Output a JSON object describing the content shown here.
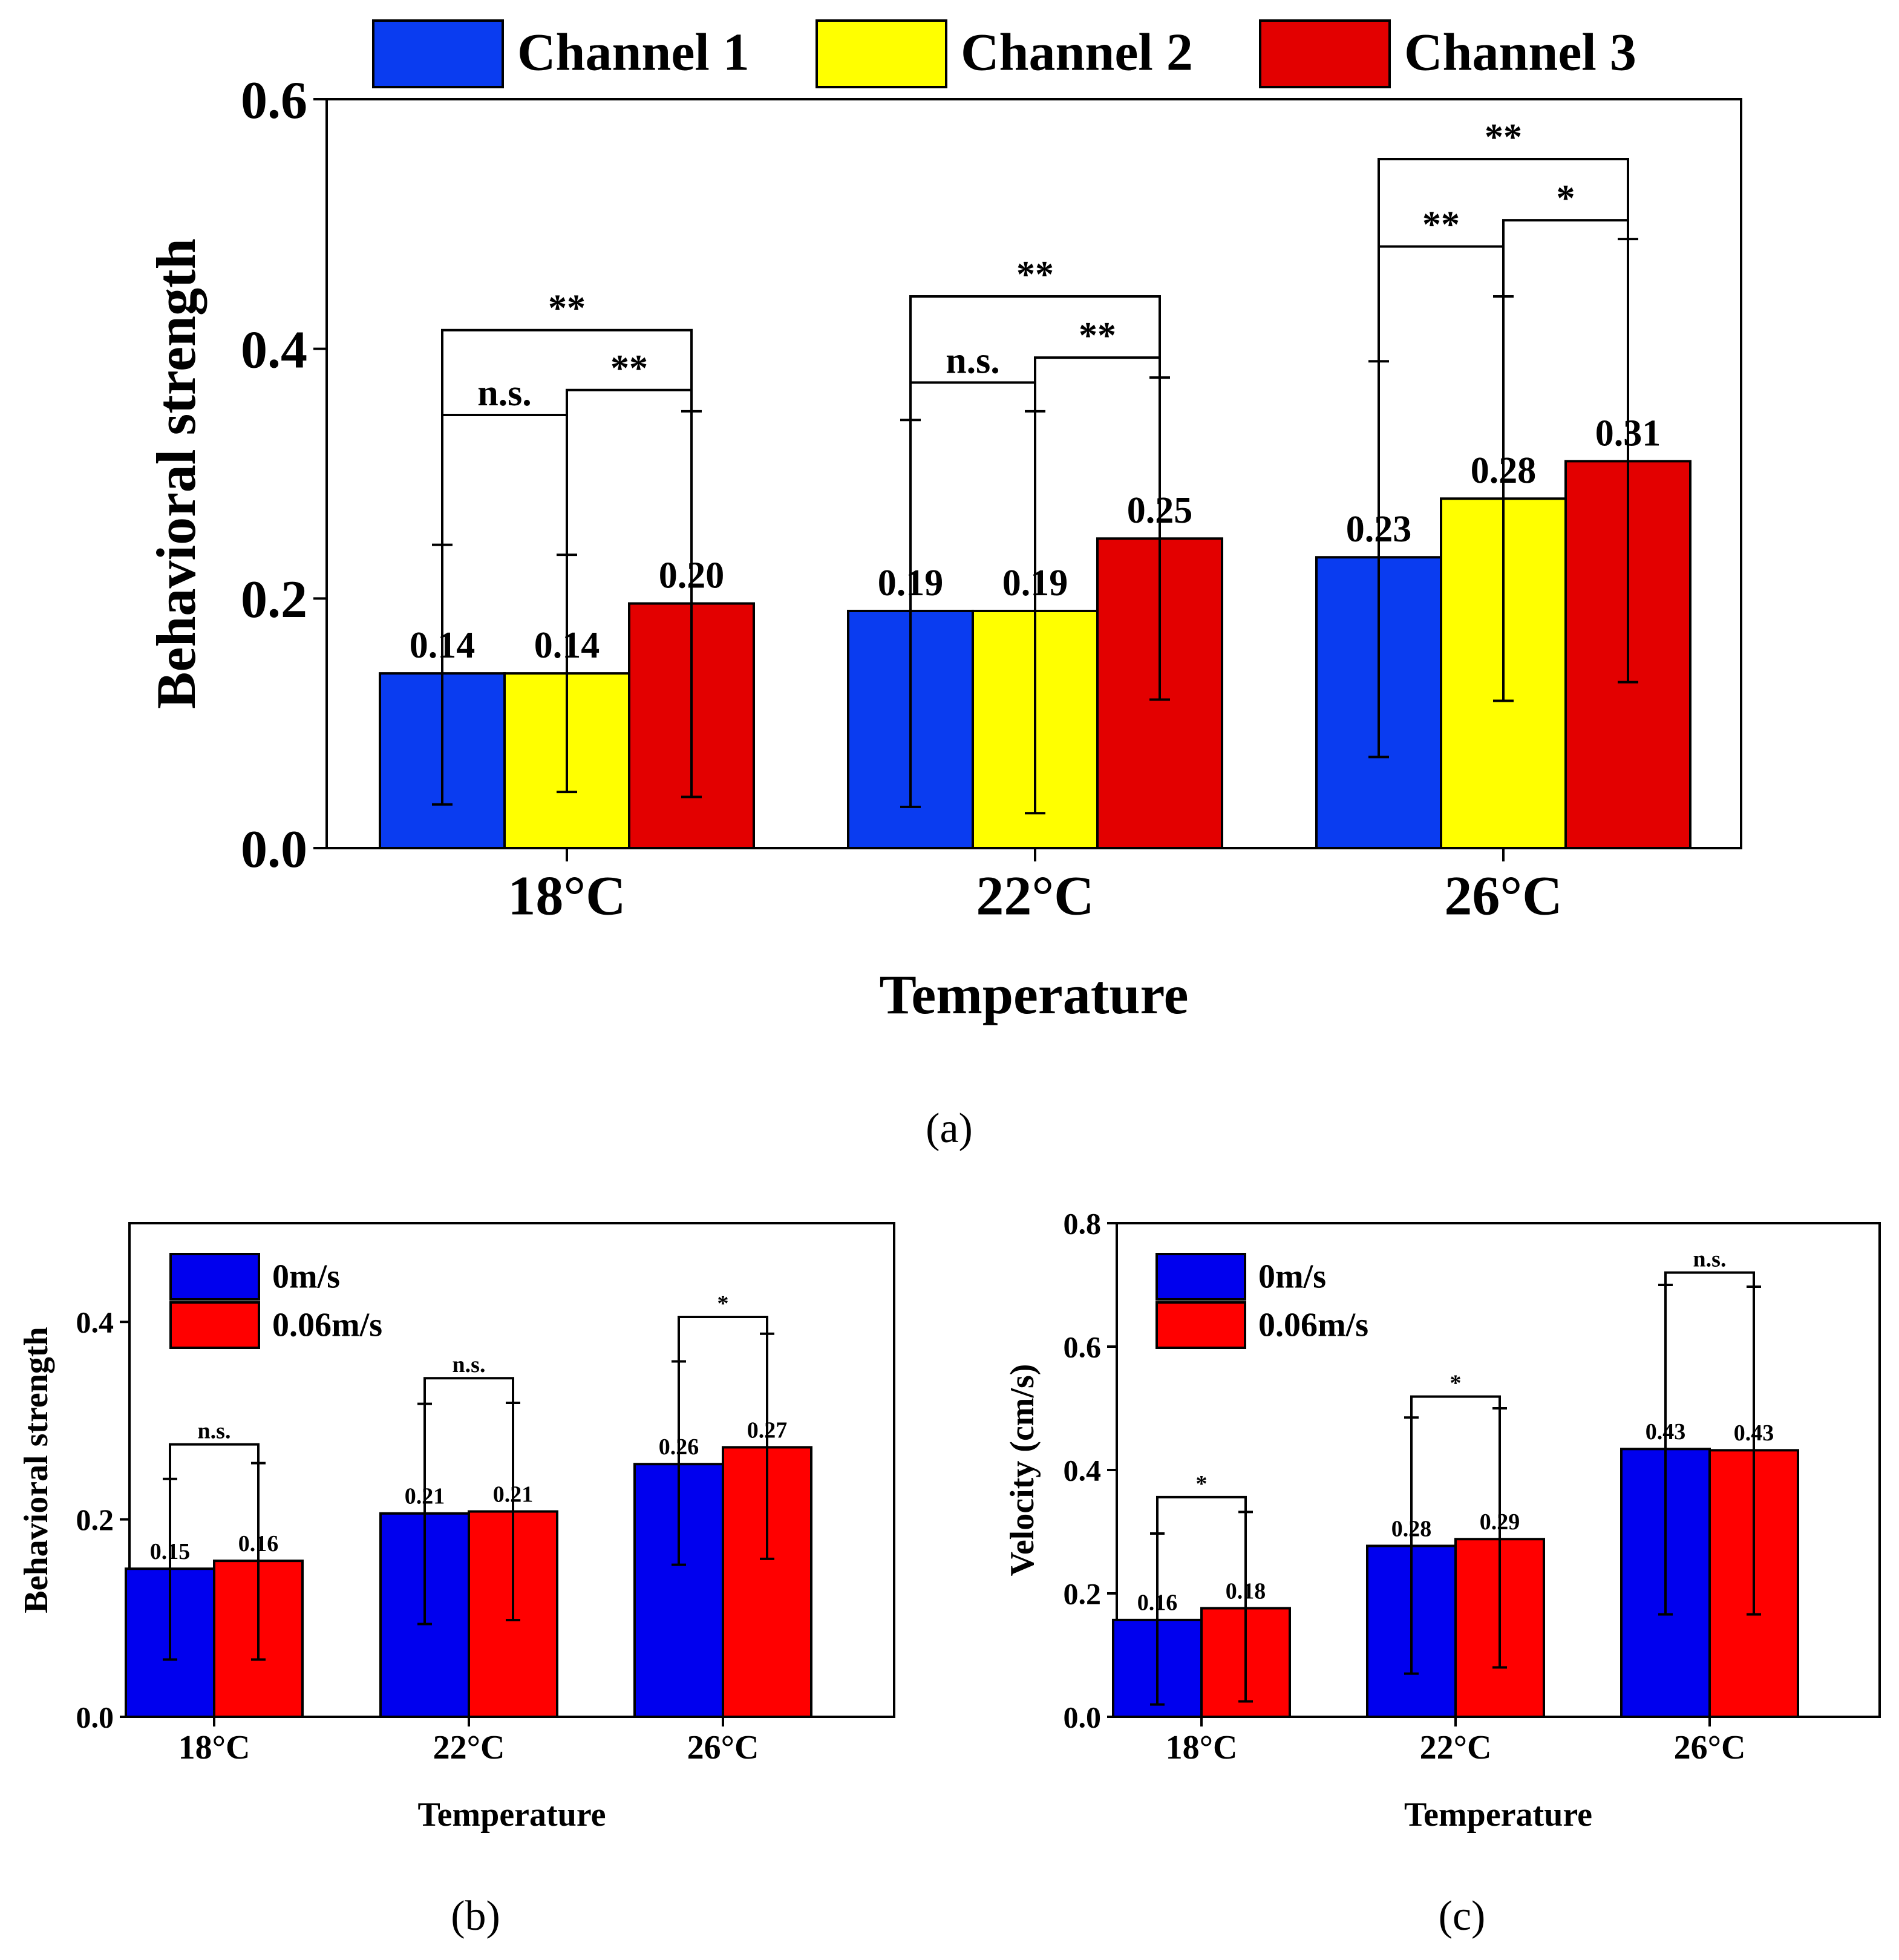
{
  "chart_data": [
    {
      "type": "bar",
      "panel": "a",
      "caption": "(a)",
      "xlabel": "Temperature",
      "ylabel": "Behavioral strength",
      "categories": [
        "18°C",
        "22°C",
        "26°C"
      ],
      "ylim": [
        0,
        0.6
      ],
      "yticks": [
        "0.0",
        "0.2",
        "0.4",
        "0.6"
      ],
      "legend_position": "top",
      "series": [
        {
          "name": "Channel 1",
          "color": "#0a3cf0",
          "values": [
            0.14,
            0.19,
            0.233
          ],
          "labels": [
            "0.14",
            "0.19",
            "0.23"
          ],
          "err_low": [
            0.035,
            0.033,
            0.073
          ],
          "err_high": [
            0.243,
            0.343,
            0.39
          ]
        },
        {
          "name": "Channel 2",
          "color": "#ffff00",
          "values": [
            0.14,
            0.19,
            0.28
          ],
          "labels": [
            "0.14",
            "0.19",
            "0.28"
          ],
          "err_low": [
            0.045,
            0.028,
            0.118
          ],
          "err_high": [
            0.235,
            0.35,
            0.442
          ]
        },
        {
          "name": "Channel 3",
          "color": "#e30000",
          "values": [
            0.196,
            0.248,
            0.31
          ],
          "labels": [
            "0.20",
            "0.25",
            "0.31"
          ],
          "err_low": [
            0.041,
            0.119,
            0.133
          ],
          "err_high": [
            0.35,
            0.377,
            0.488
          ]
        }
      ],
      "significance": [
        {
          "group": 0,
          "from": 0,
          "to": 1,
          "label": "n.s.",
          "level": 0.347
        },
        {
          "group": 0,
          "from": 1,
          "to": 2,
          "label": "**",
          "level": 0.367
        },
        {
          "group": 0,
          "from": 0,
          "to": 2,
          "label": "**",
          "level": 0.415
        },
        {
          "group": 1,
          "from": 0,
          "to": 1,
          "label": "n.s.",
          "level": 0.373
        },
        {
          "group": 1,
          "from": 1,
          "to": 2,
          "label": "**",
          "level": 0.393
        },
        {
          "group": 1,
          "from": 0,
          "to": 2,
          "label": "**",
          "level": 0.442
        },
        {
          "group": 2,
          "from": 0,
          "to": 1,
          "label": "**",
          "level": 0.482
        },
        {
          "group": 2,
          "from": 1,
          "to": 2,
          "label": "*",
          "level": 0.503
        },
        {
          "group": 2,
          "from": 0,
          "to": 2,
          "label": "**",
          "level": 0.552
        }
      ]
    },
    {
      "type": "bar",
      "panel": "b",
      "caption": "(b)",
      "xlabel": "Temperature",
      "ylabel": "Behavioral strength",
      "categories": [
        "18°C",
        "22°C",
        "26°C"
      ],
      "ylim": [
        0,
        0.5
      ],
      "yticks": [
        "0.0",
        "0.2",
        "0.4"
      ],
      "legend_position": "top-left",
      "series": [
        {
          "name": "0m/s",
          "color": "#0000ee",
          "values": [
            0.15,
            0.206,
            0.256
          ],
          "labels": [
            "0.15",
            "0.21",
            "0.26"
          ],
          "err_low": [
            0.058,
            0.094,
            0.154
          ],
          "err_high": [
            0.241,
            0.317,
            0.36
          ]
        },
        {
          "name": "0.06m/s",
          "color": "#ff0000",
          "values": [
            0.158,
            0.208,
            0.273
          ],
          "labels": [
            "0.16",
            "0.21",
            "0.27"
          ],
          "err_low": [
            0.058,
            0.098,
            0.16
          ],
          "err_high": [
            0.257,
            0.318,
            0.388
          ]
        }
      ],
      "significance": [
        {
          "group": 0,
          "label": "n.s.",
          "level": 0.276
        },
        {
          "group": 1,
          "label": "n.s.",
          "level": 0.343
        },
        {
          "group": 2,
          "label": "*",
          "level": 0.405
        }
      ]
    },
    {
      "type": "bar",
      "panel": "c",
      "caption": "(c)",
      "xlabel": "Temperature",
      "ylabel": "Velocity (cm/s)",
      "categories": [
        "18°C",
        "22°C",
        "26°C"
      ],
      "ylim": [
        0,
        0.8
      ],
      "yticks": [
        "0.0",
        "0.2",
        "0.4",
        "0.6",
        "0.8"
      ],
      "legend_position": "top-left",
      "series": [
        {
          "name": "0m/s",
          "color": "#0000ee",
          "values": [
            0.157,
            0.277,
            0.434
          ],
          "labels": [
            "0.16",
            "0.28",
            "0.43"
          ],
          "err_low": [
            0.02,
            0.07,
            0.166
          ],
          "err_high": [
            0.297,
            0.485,
            0.7
          ]
        },
        {
          "name": "0.06m/s",
          "color": "#ff0000",
          "values": [
            0.176,
            0.288,
            0.432
          ],
          "labels": [
            "0.18",
            "0.29",
            "0.43"
          ],
          "err_low": [
            0.025,
            0.08,
            0.166
          ],
          "err_high": [
            0.332,
            0.5,
            0.697
          ]
        }
      ],
      "significance": [
        {
          "group": 0,
          "label": "*",
          "level": 0.356
        },
        {
          "group": 1,
          "label": "*",
          "level": 0.519
        },
        {
          "group": 2,
          "label": "n.s.",
          "level": 0.72
        }
      ]
    }
  ]
}
